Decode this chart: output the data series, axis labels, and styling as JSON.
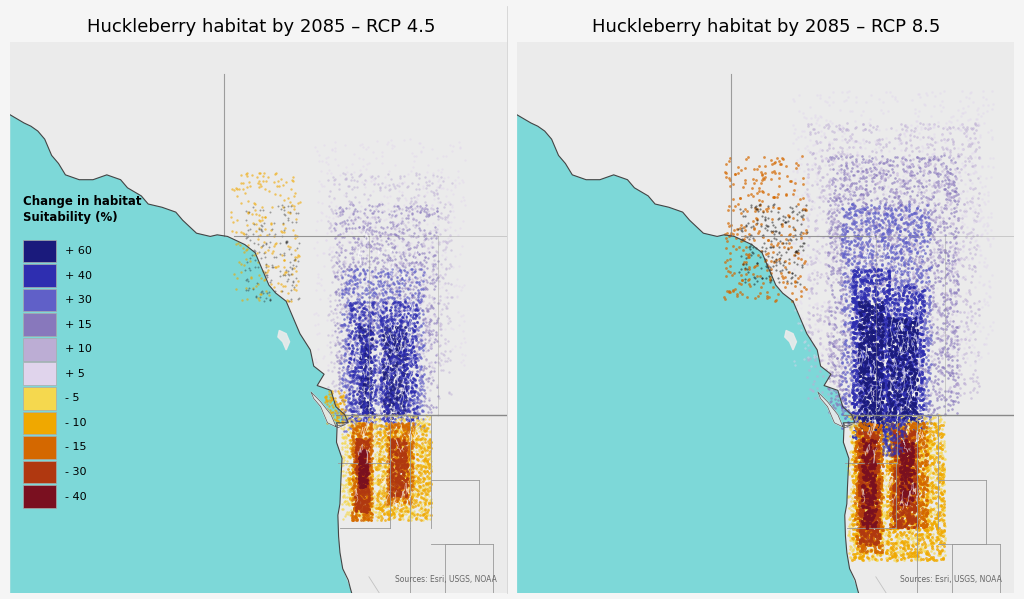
{
  "title_left": "Huckleberry habitat by 2085 – RCP 4.5",
  "title_right": "Huckleberry habitat by 2085 – RCP 8.5",
  "legend_title_line1": "Change in habitat",
  "legend_title_line2": "Suitability (%)",
  "legend_labels": [
    "+ 60",
    "+ 40",
    "+ 30",
    "+ 15",
    "+ 10",
    "+ 5",
    "- 5",
    "- 10",
    "- 15",
    "- 30",
    "- 40"
  ],
  "legend_colors": [
    "#1a1a7c",
    "#2e2eb0",
    "#6060c8",
    "#8878bc",
    "#bcadd4",
    "#e0d4ec",
    "#f5d84e",
    "#f0a800",
    "#d46800",
    "#b03810",
    "#7a1020"
  ],
  "ocean_color": "#7dd8d8",
  "land_color": "#ebebeb",
  "border_color": "#888888",
  "state_border_color": "#999999",
  "background_color": "#f5f5f5",
  "sources_text": "Sources: Esri, USGS, NOAA",
  "title_fontsize": 13,
  "legend_fontsize": 9,
  "map_bg": "#f8f8f8"
}
